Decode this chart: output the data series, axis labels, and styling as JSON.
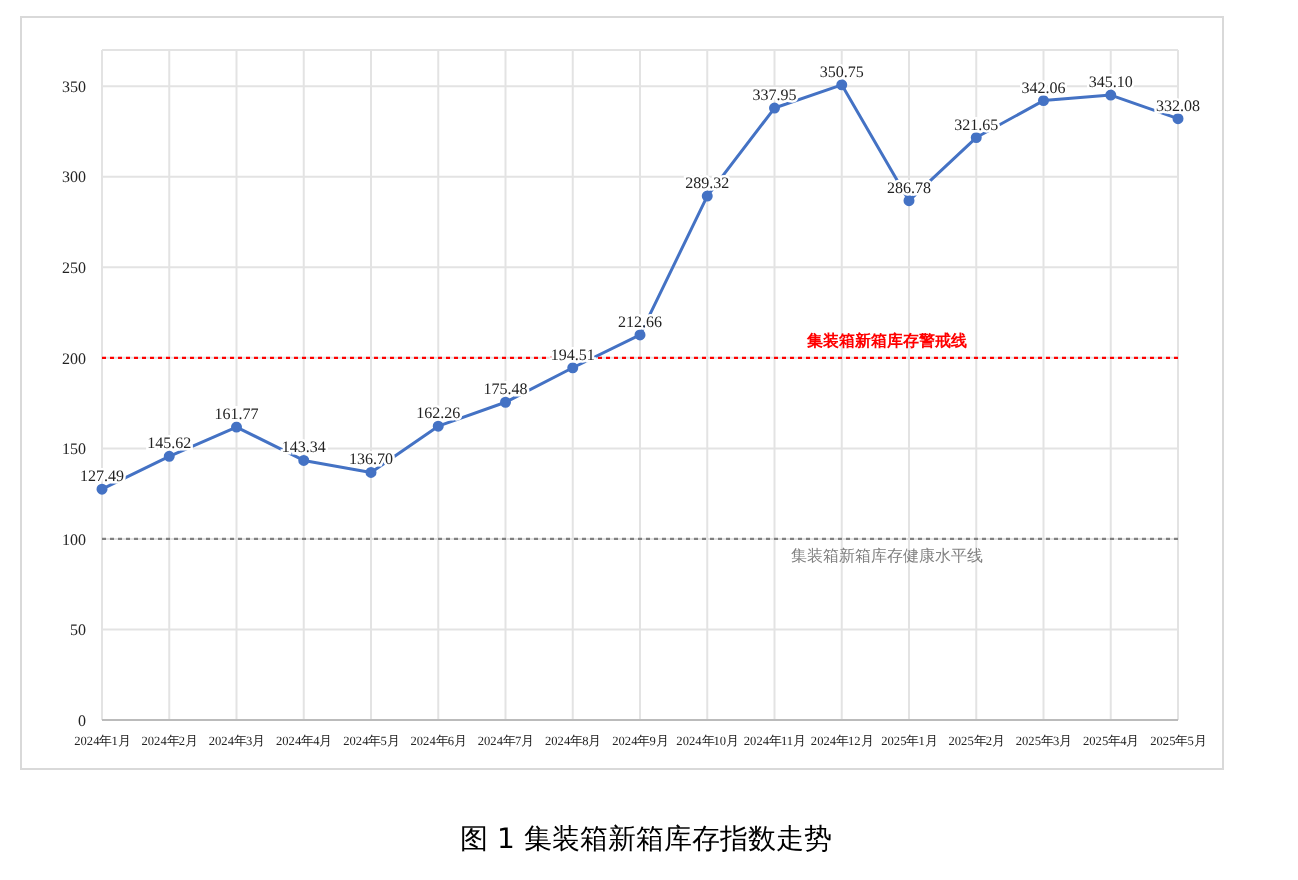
{
  "chart_data": {
    "type": "line",
    "title": "图 1 集装箱新箱库存指数走势",
    "categories": [
      "2024年1月",
      "2024年2月",
      "2024年3月",
      "2024年4月",
      "2024年5月",
      "2024年6月",
      "2024年7月",
      "2024年8月",
      "2024年9月",
      "2024年10月",
      "2024年11月",
      "2024年12月",
      "2025年1月",
      "2025年2月",
      "2025年3月",
      "2025年4月",
      "2025年5月"
    ],
    "series": [
      {
        "color": "#4472c4",
        "values": [
          127.49,
          145.62,
          161.77,
          143.34,
          136.7,
          162.26,
          175.48,
          194.51,
          212.66,
          289.32,
          337.95,
          350.75,
          286.78,
          321.65,
          342.06,
          345.1,
          332.08
        ],
        "value_labels": [
          "127.49",
          "145.62",
          "161.77",
          "143.34",
          "136.70",
          "162.26",
          "175.48",
          "194.51",
          "212.66",
          "289.32",
          "337.95",
          "350.75",
          "286.78",
          "321.65",
          "342.06",
          "345.10",
          "332.08"
        ]
      }
    ],
    "ylim": [
      0,
      370
    ],
    "yticks": [
      0,
      50,
      100,
      150,
      200,
      250,
      300,
      350
    ],
    "grid": true,
    "marker": "circle",
    "line_style": "solid",
    "ref_lines": [
      {
        "axis": "y",
        "value": 200,
        "label": "集装箱新箱库存警戒线",
        "color": "#ff0000",
        "line_style": "dotted"
      },
      {
        "axis": "y",
        "value": 100,
        "label": "集装箱新箱库存健康水平线",
        "color": "#808080",
        "line_style": "dotted"
      }
    ]
  }
}
